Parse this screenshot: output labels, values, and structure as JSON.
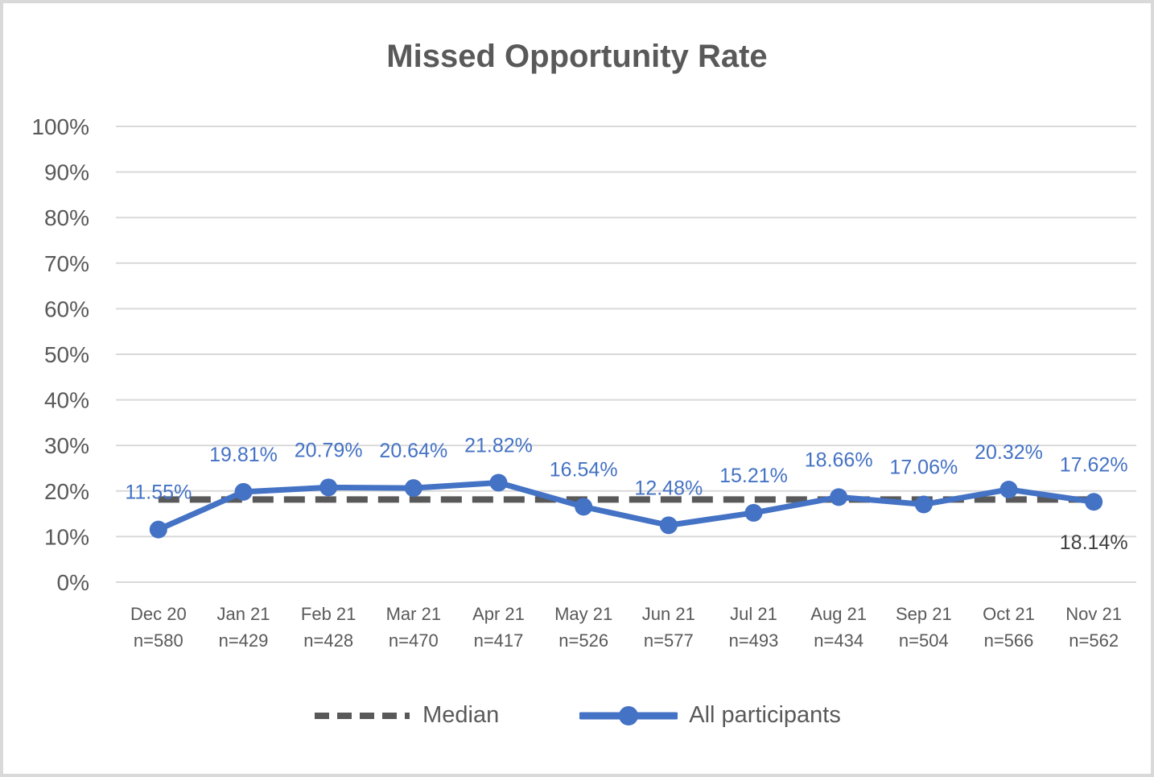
{
  "chart_data": {
    "type": "line",
    "title": "Missed Opportunity Rate",
    "categories": [
      {
        "month": "Dec 20",
        "n": "n=580"
      },
      {
        "month": "Jan 21",
        "n": "n=429"
      },
      {
        "month": "Feb 21",
        "n": "n=428"
      },
      {
        "month": "Mar 21",
        "n": "n=470"
      },
      {
        "month": "Apr 21",
        "n": "n=417"
      },
      {
        "month": "May 21",
        "n": "n=526"
      },
      {
        "month": "Jun 21",
        "n": "n=577"
      },
      {
        "month": "Jul 21",
        "n": "n=493"
      },
      {
        "month": "Aug 21",
        "n": "n=434"
      },
      {
        "month": "Sep 21",
        "n": "n=504"
      },
      {
        "month": "Oct 21",
        "n": "n=566"
      },
      {
        "month": "Nov 21",
        "n": "n=562"
      }
    ],
    "series": [
      {
        "name": "Median",
        "style": "dashed",
        "color": "#595959",
        "value": 18.14,
        "label": "18.14%",
        "label_color": "#404040"
      },
      {
        "name": "All participants",
        "style": "solid-with-markers",
        "color": "#4472C4",
        "values": [
          11.55,
          19.81,
          20.79,
          20.64,
          21.82,
          16.54,
          12.48,
          15.21,
          18.66,
          17.06,
          20.32,
          17.62
        ],
        "labels": [
          "11.55%",
          "19.81%",
          "20.79%",
          "20.64%",
          "21.82%",
          "16.54%",
          "12.48%",
          "15.21%",
          "18.66%",
          "17.06%",
          "20.32%",
          "17.62%"
        ]
      }
    ],
    "y_axis": {
      "min": 0,
      "max": 100,
      "ticks": [
        "0%",
        "10%",
        "20%",
        "30%",
        "40%",
        "50%",
        "60%",
        "70%",
        "80%",
        "90%",
        "100%"
      ]
    },
    "grid": true,
    "legend_position": "bottom",
    "colors": {
      "grid": "#D9D9D9",
      "axis_text": "#595959",
      "title": "#595959",
      "data_label": "#4472C4"
    }
  }
}
